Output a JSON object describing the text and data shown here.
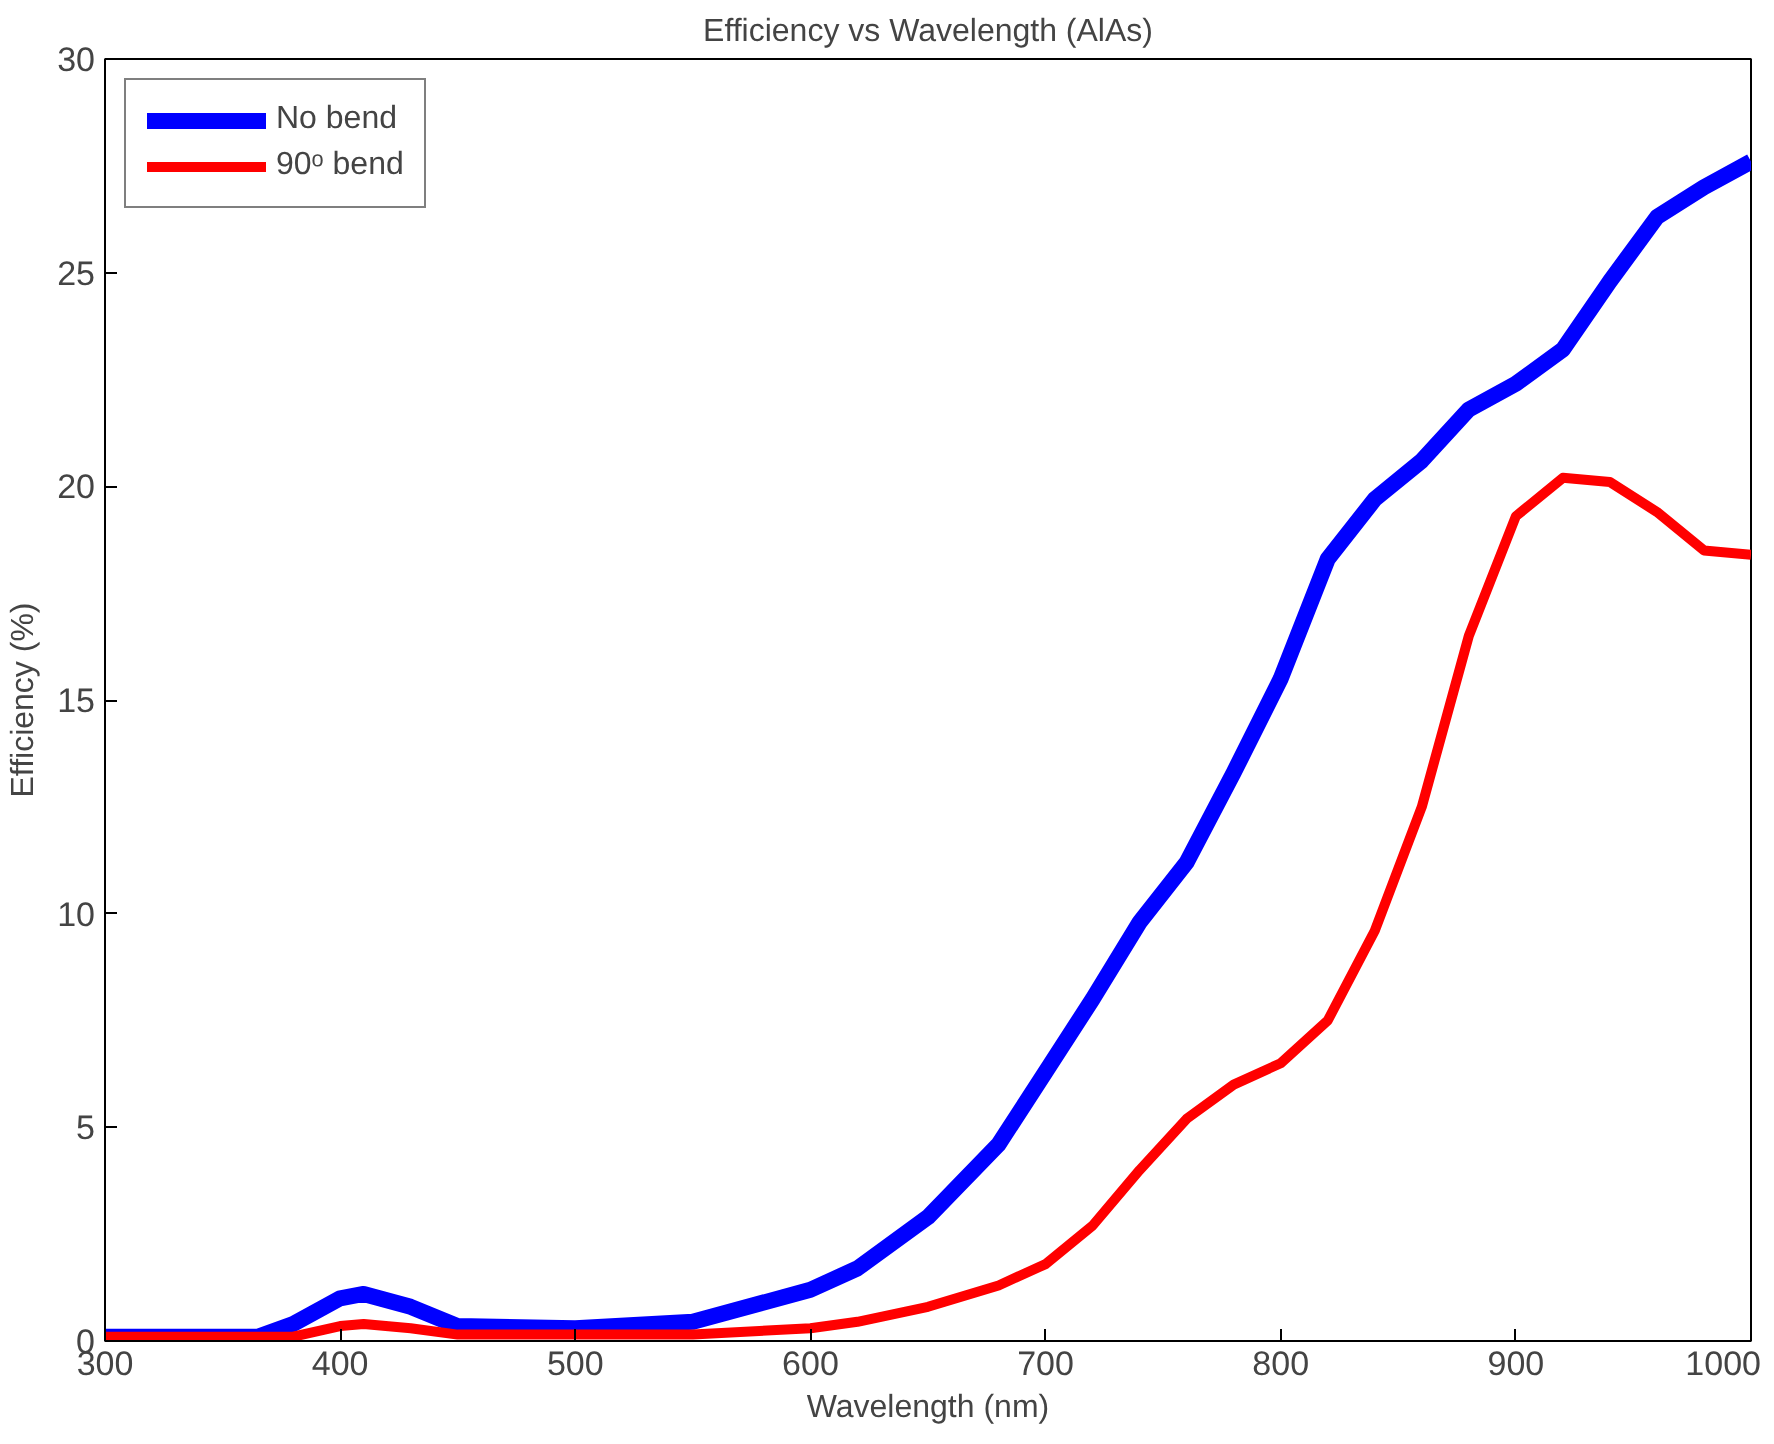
{
  "chart_data": {
    "type": "line",
    "title": "Efficiency vs Wavelength (AlAs)",
    "xlabel": "Wavelength (nm)",
    "ylabel": "Efficiency (%)",
    "x": [
      300,
      340,
      365,
      380,
      400,
      410,
      430,
      450,
      500,
      550,
      600,
      620,
      650,
      680,
      700,
      720,
      740,
      760,
      780,
      800,
      820,
      840,
      860,
      880,
      900,
      920,
      940,
      960,
      980,
      1000
    ],
    "series": [
      {
        "name": "No bend",
        "color": "#0000ff",
        "values": [
          0.1,
          0.1,
          0.1,
          0.4,
          1.0,
          1.1,
          0.8,
          0.35,
          0.3,
          0.45,
          1.2,
          1.7,
          2.9,
          4.6,
          6.3,
          8.0,
          9.8,
          11.2,
          13.3,
          15.5,
          18.3,
          19.7,
          20.6,
          21.8,
          22.4,
          23.2,
          24.8,
          26.3,
          27.0,
          27.6
        ]
      },
      {
        "name": "90ᵒ bend",
        "color": "#ff0000",
        "values": [
          0.1,
          0.1,
          0.1,
          0.1,
          0.35,
          0.4,
          0.3,
          0.15,
          0.15,
          0.15,
          0.3,
          0.45,
          0.8,
          1.3,
          1.8,
          2.7,
          4.0,
          5.2,
          6.0,
          6.5,
          7.5,
          9.6,
          12.5,
          16.5,
          19.3,
          20.2,
          20.1,
          19.4,
          18.5,
          18.4
        ]
      }
    ],
    "xlim": [
      300,
      1000
    ],
    "ylim": [
      0,
      30
    ],
    "xticks": [
      300,
      400,
      500,
      600,
      700,
      800,
      900,
      1000
    ],
    "yticks": [
      0,
      5,
      10,
      15,
      20,
      25,
      30
    ],
    "grid": false,
    "legend": "top left",
    "line_style": "solid",
    "marker": "none"
  }
}
